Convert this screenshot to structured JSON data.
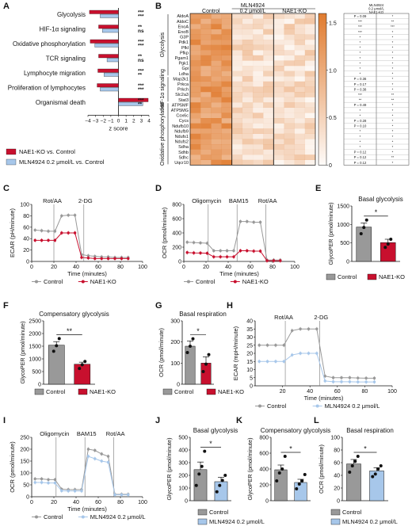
{
  "panel_letters": [
    "A",
    "B",
    "C",
    "D",
    "E",
    "F",
    "G",
    "H",
    "I",
    "J",
    "K",
    "L"
  ],
  "colors": {
    "ko": "#c8102e",
    "ctl": "#999999",
    "mln": "#a7c7ea",
    "heat": "#e07b2f"
  },
  "chart_data": [
    {
      "id": "A",
      "type": "bar",
      "categories": [
        "Glycolysis",
        "HIF-1α signaling",
        "Oxidative phosphorylation",
        "TCR signaling",
        "Lymphocyte migration",
        "Proliferation of lymphocytes",
        "Organismal death"
      ],
      "series": [
        {
          "name": "NAE1-KO vs. Control",
          "values": [
            -3.8,
            -2.6,
            -3.7,
            -2.6,
            -2.7,
            -2.8,
            3.9
          ],
          "sig": [
            "***",
            "**",
            "***",
            "**",
            "***",
            "***",
            "***"
          ]
        },
        {
          "name": "MLN4924 0.2 μmol/L vs. Control",
          "values": [
            -2.4,
            -2.1,
            -3.1,
            -1.5,
            -1.9,
            -2.4,
            3.2
          ],
          "sig": [
            "***",
            "ns",
            "***",
            "ns",
            "**",
            "***",
            "**"
          ]
        }
      ],
      "xlabel": "z score",
      "xlim": [
        -4,
        4
      ],
      "xticks": [
        "−4",
        "−3",
        "−2",
        "−1",
        "0",
        "1",
        "2",
        "3",
        "4"
      ]
    },
    {
      "id": "B",
      "type": "heatmap",
      "groups": [
        "Control",
        "0.2 μmol/L",
        "NAE1-KO"
      ],
      "super_label": "MLN4924",
      "row_groups": [
        {
          "name": "Glycolysis",
          "rows": [
            "AldoA",
            "AldoC",
            "EnoA",
            "EnoB",
            "G3P",
            "Pdk1",
            "Pfkl",
            "Pfkp",
            "Pgam1",
            "Pgk1",
            "Gpi",
            "Ldha"
          ]
        },
        {
          "name": "HIF-1α signaling",
          "rows": [
            "Map2k1",
            "Prkca",
            "Prkch",
            "Slc2a3",
            "Stat3"
          ]
        },
        {
          "name": "Oxidative phosphorylation",
          "rows": [
            "ATP5MF",
            "ATP5MG",
            "Cox6c",
            "Cycs",
            "Ndufb10",
            "Ndufb9",
            "Ndufs1",
            "Ndufs2",
            "Sdha",
            "Sdhb",
            "Sdhc",
            "Uqcr10"
          ]
        }
      ],
      "colorbar": {
        "ticks": [
          "1.5",
          "1.0",
          "0.5",
          "0"
        ]
      },
      "sig_header": [
        "MLN4924",
        "0.2 μmol/L",
        "NAE1-KO"
      ],
      "sig_col1": [
        "P = 0.09",
        "***",
        "***",
        "***",
        "*",
        "*",
        "*",
        "*",
        "*",
        "*",
        "*",
        "*",
        "P = 0.36",
        "P = 0.17",
        "P = 0.38",
        "***",
        "**",
        "P = 0.49",
        "*",
        "*",
        "P = 0.28",
        "P = 0.10",
        "*",
        "*",
        "*",
        "*",
        "P = 0.12",
        "P = 0.12",
        "P = 0.12"
      ],
      "sig_col2": [
        "*",
        "**",
        "***",
        "*",
        "*",
        "*",
        "*",
        "*",
        "*",
        "*",
        "*",
        "*",
        "*",
        "*",
        "*",
        "**",
        "**",
        "*",
        "*",
        "*",
        "*",
        "*",
        "*",
        "*",
        "*",
        "*",
        "*",
        "**",
        "*"
      ]
    },
    {
      "id": "C",
      "type": "line",
      "xlabel": "Time (minutes)",
      "ylabel": "ECAR (pH/minute)",
      "ylim": [
        0,
        100
      ],
      "xlim": [
        0,
        100
      ],
      "yticks": [
        0,
        20,
        40,
        60,
        80,
        100
      ],
      "xticks": [
        0,
        20,
        40,
        60,
        80,
        100
      ],
      "markers": [
        "Rot/AA",
        "2-DG"
      ],
      "marker_x": [
        20,
        47
      ],
      "x": [
        3,
        9,
        15,
        21,
        27,
        33,
        39,
        45,
        51,
        57,
        63,
        69,
        75,
        81,
        87
      ],
      "series": [
        {
          "name": "Control",
          "values": [
            55,
            54,
            53,
            53,
            80,
            81,
            81,
            12,
            10,
            9,
            8,
            8,
            7,
            7,
            7
          ]
        },
        {
          "name": "NAE1-KO",
          "values": [
            37,
            37,
            37,
            37,
            50,
            50,
            50,
            7,
            6,
            5,
            5,
            5,
            5,
            5,
            5
          ]
        }
      ]
    },
    {
      "id": "D",
      "type": "line",
      "xlabel": "Time (minutes)",
      "ylabel": "OCR (pmol/minute)",
      "ylim": [
        0,
        800
      ],
      "xlim": [
        0,
        100
      ],
      "yticks": [
        0,
        200,
        400,
        600,
        800
      ],
      "xticks": [
        0,
        20,
        40,
        60,
        80,
        100
      ],
      "markers": [
        "Oligomycin",
        "BAM15",
        "Rot/AA"
      ],
      "marker_x": [
        22,
        48,
        74
      ],
      "x": [
        3,
        9,
        15,
        21,
        27,
        33,
        39,
        45,
        51,
        57,
        63,
        69,
        75,
        81,
        87
      ],
      "series": [
        {
          "name": "Control",
          "values": [
            270,
            265,
            260,
            255,
            150,
            150,
            150,
            150,
            560,
            560,
            550,
            550,
            20,
            20,
            20
          ]
        },
        {
          "name": "NAE1-KO",
          "values": [
            125,
            120,
            118,
            115,
            65,
            65,
            65,
            65,
            150,
            150,
            145,
            145,
            10,
            10,
            10
          ]
        }
      ]
    },
    {
      "id": "E",
      "type": "bar",
      "title": "Basal glycolysis",
      "ylabel": "GlycoPER (pmol/minute)",
      "ylim": [
        0,
        1500
      ],
      "yticks": [
        0,
        500,
        1000,
        1500
      ],
      "categories": [
        "Control",
        "NAE1-KO"
      ],
      "values": [
        930,
        510
      ],
      "errors": [
        110,
        90
      ],
      "points": [
        [
          750,
          920,
          1120
        ],
        [
          380,
          470,
          600
        ]
      ],
      "sig": "*"
    },
    {
      "id": "F",
      "type": "bar",
      "title": "Compensatory glycolysis",
      "ylabel": "GlycoPER (pmol/minute)",
      "ylim": [
        0,
        2500
      ],
      "yticks": [
        0,
        500,
        1000,
        1500,
        2000,
        2500
      ],
      "categories": [
        "Control",
        "NAE1-KO"
      ],
      "values": [
        1540,
        790
      ],
      "errors": [
        140,
        80
      ],
      "points": [
        [
          1300,
          1520,
          1800
        ],
        [
          620,
          770,
          900
        ]
      ],
      "sig": "**"
    },
    {
      "id": "G",
      "type": "bar",
      "title": "Basal respiration",
      "ylabel": "OCR (pmol/minute)",
      "ylim": [
        0,
        300
      ],
      "yticks": [
        0,
        100,
        200,
        300
      ],
      "categories": [
        "Control",
        "NAE1-KO"
      ],
      "values": [
        180,
        100
      ],
      "errors": [
        25,
        30
      ],
      "points": [
        [
          150,
          180,
          215
        ],
        [
          60,
          95,
          140
        ]
      ],
      "sig": "*"
    },
    {
      "id": "H",
      "type": "line",
      "xlabel": "Time (minutes)",
      "ylabel": "ECAR (mpH/minute)",
      "ylim": [
        0,
        40
      ],
      "xlim": [
        0,
        100
      ],
      "yticks": [
        0,
        5,
        10,
        15,
        20,
        25,
        30,
        35,
        40
      ],
      "xticks": [
        20,
        40,
        60,
        80,
        100
      ],
      "markers": [
        "Rot/AA",
        "2-DG"
      ],
      "marker_x": [
        22,
        47
      ],
      "x": [
        3,
        9,
        15,
        21,
        27,
        33,
        39,
        45,
        51,
        57,
        63,
        69,
        75,
        81,
        87
      ],
      "series": [
        {
          "name": "Control",
          "values": [
            25,
            25,
            25,
            25,
            34,
            35,
            35,
            35,
            6,
            5,
            5,
            5,
            4.8,
            4.7,
            4.7
          ]
        },
        {
          "name": "MLN4924 0.2 μmol/L",
          "values": [
            15,
            15,
            15,
            15,
            19,
            20,
            20,
            20,
            3,
            2.5,
            2.5,
            2.5,
            2.4,
            2.4,
            2.4
          ]
        }
      ]
    },
    {
      "id": "I",
      "type": "line",
      "xlabel": "Time (minutes)",
      "ylabel": "OCR (pmol/minute)",
      "ylim": [
        0,
        250
      ],
      "xlim": [
        0,
        100
      ],
      "yticks": [
        0,
        50,
        100,
        150,
        200,
        250
      ],
      "xticks": [
        0,
        20,
        40,
        60,
        80,
        100
      ],
      "markers": [
        "Oligomycin",
        "BAM15",
        "Rot/AA"
      ],
      "marker_x": [
        22,
        48,
        74
      ],
      "x": [
        3,
        9,
        15,
        21,
        27,
        33,
        39,
        45,
        51,
        57,
        63,
        69,
        75,
        81,
        87
      ],
      "series": [
        {
          "name": "Control",
          "values": [
            75,
            75,
            72,
            72,
            32,
            30,
            30,
            30,
            200,
            195,
            180,
            170,
            10,
            10,
            10
          ]
        },
        {
          "name": "MLN4924 0.2 μmol/L",
          "values": [
            60,
            60,
            58,
            58,
            25,
            24,
            24,
            24,
            170,
            160,
            150,
            145,
            8,
            8,
            8
          ]
        }
      ]
    },
    {
      "id": "J",
      "type": "bar",
      "title": "Basal glycolysis",
      "ylabel": "GlycoPER (pmol/minute)",
      "ylim": [
        0,
        500
      ],
      "yticks": [
        0,
        100,
        200,
        300,
        400,
        500
      ],
      "categories": [
        "Control",
        "MLN4924 0.2 μmol/L"
      ],
      "values": [
        245,
        150
      ],
      "errors": [
        60,
        35
      ],
      "points": [
        [
          120,
          210,
          270,
          390
        ],
        [
          70,
          120,
          160,
          200
        ]
      ],
      "sig": "*"
    },
    {
      "id": "K",
      "type": "bar",
      "title": "Compensatory glycolysis",
      "ylabel": "GlycoPER (pmol/minute)",
      "ylim": [
        0,
        800
      ],
      "yticks": [
        0,
        200,
        400,
        600,
        800
      ],
      "categories": [
        "Control",
        "MLN4924 0.2 μmol/L"
      ],
      "values": [
        390,
        230
      ],
      "errors": [
        60,
        40
      ],
      "points": [
        [
          250,
          350,
          400,
          560
        ],
        [
          150,
          210,
          250,
          330
        ]
      ],
      "sig": "*"
    },
    {
      "id": "L",
      "type": "bar",
      "title": "Basal respiration",
      "ylabel": "OCR (pmol/minute)",
      "ylim": [
        0,
        100
      ],
      "yticks": [
        0,
        20,
        40,
        60,
        80,
        100
      ],
      "categories": [
        "Control",
        "MLN4924 0.2 μmol/L"
      ],
      "values": [
        58,
        47
      ],
      "errors": [
        7,
        5
      ],
      "points": [
        [
          45,
          55,
          62,
          70
        ],
        [
          38,
          42,
          50,
          55
        ]
      ],
      "sig": "*"
    }
  ]
}
